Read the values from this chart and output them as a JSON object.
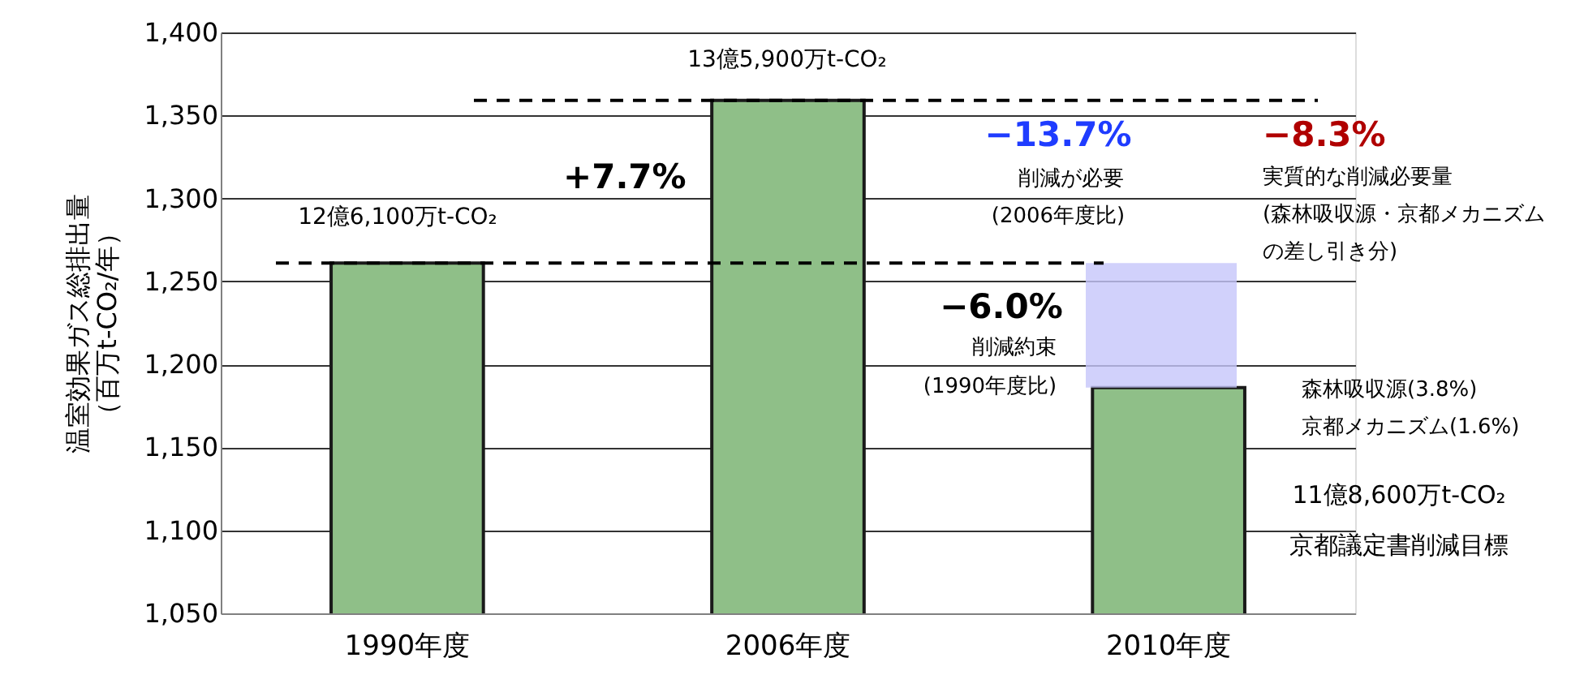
{
  "chart_data": {
    "type": "bar",
    "ylabel": "温室効果ガス総排出量（百万t-CO₂/年）",
    "categories": [
      "1990年度",
      "2006年度",
      "2010年度"
    ],
    "values": [
      1261,
      1359,
      1186
    ],
    "color": "#8fbf88",
    "ylim": [
      1050,
      1400
    ],
    "yticks": [
      {
        "value": 1050,
        "label": "1,050"
      },
      {
        "value": 1100,
        "label": "1,100"
      },
      {
        "value": 1150,
        "label": "1,150"
      },
      {
        "value": 1200,
        "label": "1,200"
      },
      {
        "value": 1250,
        "label": "1,250"
      },
      {
        "value": 1300,
        "label": "1,300"
      },
      {
        "value": 1350,
        "label": "1,350"
      },
      {
        "value": 1400,
        "label": "1,400"
      }
    ],
    "grid": "y",
    "ref_lines": [
      {
        "axis": "y",
        "value": 1261,
        "color": "#000000",
        "line_style": "dashed"
      },
      {
        "axis": "y",
        "value": 1359,
        "color": "#000000",
        "line_style": "dashed"
      }
    ],
    "bands": [
      {
        "axis": "y",
        "from": 1186,
        "to": 1261,
        "color": "#c5c5fa"
      }
    ],
    "annotations": [
      "13億5,900万t-CO₂",
      "12億6,100万t-CO₂",
      "+7.7%",
      "−13.7%",
      "削減が必要",
      "(2006年度比)",
      "−8.3%",
      "実質的な削減必要量",
      "(森林吸収源・京都メカニズム",
      "の差し引き分)",
      "−6.0%",
      "削減約束",
      "(1990年度比)",
      "森林吸収源(3.8%)",
      "京都メカニズム(1.6%)",
      "11億8,600万t-CO₂",
      "京都議定書削減目標"
    ]
  }
}
